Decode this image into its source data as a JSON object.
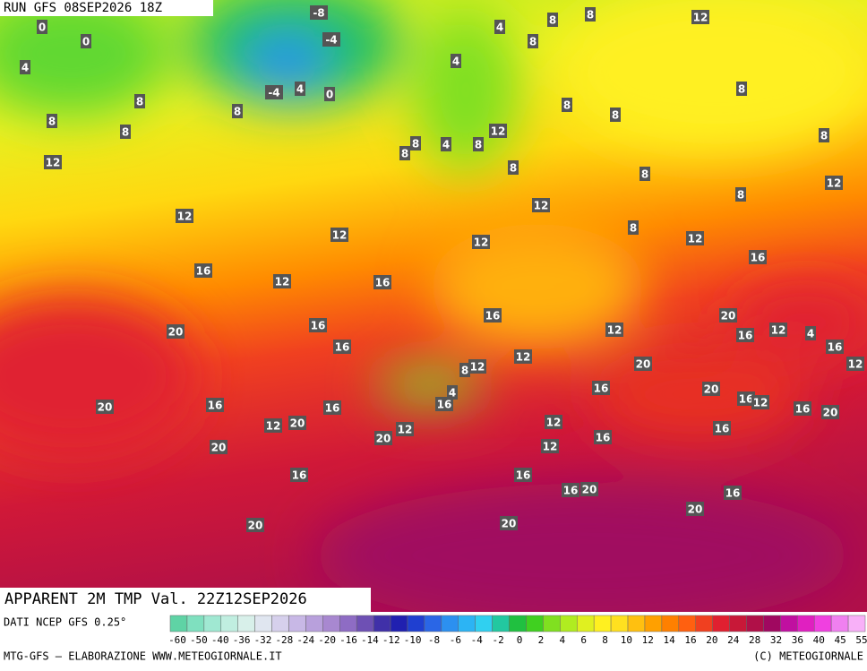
{
  "header": {
    "run": "RUN GFS 08SEP2026 18Z"
  },
  "footer": {
    "title": "APPARENT 2M TMP Val. 22Z12SEP2026",
    "source": "DATI NCEP GFS 0.25°",
    "credit": "MTG-GFS — ELABORAZIONE WWW.METEOGIORNALE.IT",
    "copyright": "(C) METEOGIORNALE"
  },
  "legend": {
    "ticks": [
      "-60",
      "-50",
      "-40",
      "-36",
      "-32",
      "-28",
      "-24",
      "-20",
      "-16",
      "-14",
      "-12",
      "-10",
      "-8",
      "-6",
      "-4",
      "-2",
      "0",
      "2",
      "4",
      "6",
      "8",
      "10",
      "12",
      "14",
      "16",
      "20",
      "24",
      "28",
      "32",
      "36",
      "40",
      "45",
      "55"
    ],
    "colors": [
      "#5fd3a5",
      "#7fe0bf",
      "#a0e8d2",
      "#c0eee0",
      "#d8f0ea",
      "#e0e6f0",
      "#d6d0ec",
      "#c8b8e6",
      "#b8a0dc",
      "#a888d0",
      "#8e6cc4",
      "#6e50b4",
      "#4030a8",
      "#2020b0",
      "#1f3fd0",
      "#2a66e6",
      "#2c90f0",
      "#2cb4f4",
      "#30d0f0",
      "#22c8a0",
      "#20c040",
      "#40d020",
      "#80e020",
      "#b0ec20",
      "#e0f020",
      "#fff020",
      "#ffe020",
      "#ffc010",
      "#ffa000",
      "#ff8000",
      "#ff6010",
      "#f04020",
      "#e02030",
      "#c81838",
      "#b01048",
      "#a00860",
      "#c010a0",
      "#e020c0",
      "#f040e0",
      "#f080f0",
      "#f8b0f8"
    ]
  },
  "map": {
    "labels": [
      "0",
      "0",
      "4",
      "8",
      "8",
      "8",
      "8",
      "12",
      "12",
      "16",
      "20",
      "20",
      "-8",
      "-4",
      "-4",
      "4",
      "0",
      "8",
      "8",
      "12",
      "8",
      "4",
      "4",
      "8",
      "8",
      "8",
      "8",
      "12",
      "8",
      "4",
      "8",
      "8",
      "8",
      "8",
      "8",
      "12",
      "12",
      "8",
      "12",
      "12",
      "12",
      "16",
      "12",
      "16",
      "16",
      "16",
      "16",
      "12",
      "20",
      "16",
      "12",
      "4",
      "16",
      "12",
      "12",
      "12",
      "8",
      "20",
      "4",
      "16",
      "16",
      "20",
      "16",
      "12",
      "16",
      "20",
      "16",
      "16",
      "12",
      "20",
      "12",
      "12",
      "16",
      "20",
      "16",
      "12",
      "20",
      "16",
      "16",
      "16",
      "20",
      "16",
      "20",
      "20",
      "20"
    ]
  }
}
